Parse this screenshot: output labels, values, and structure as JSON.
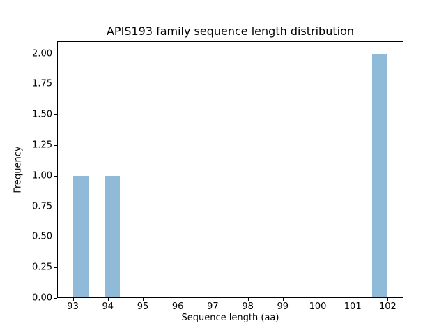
{
  "chart_data": {
    "type": "bar",
    "subtype": "histogram",
    "title": "APIS193 family sequence length distribution",
    "xlabel": "Sequence length (aa)",
    "ylabel": "Frequency",
    "xlim": [
      92.55,
      102.45
    ],
    "ylim": [
      0,
      2.1
    ],
    "grid": false,
    "legend": false,
    "background_color": "#ffffff",
    "axis_color": "#000000",
    "bar_color": "#8fbbd9",
    "xticks": [
      {
        "value": 93,
        "label": "93"
      },
      {
        "value": 94,
        "label": "94"
      },
      {
        "value": 95,
        "label": "95"
      },
      {
        "value": 96,
        "label": "96"
      },
      {
        "value": 97,
        "label": "97"
      },
      {
        "value": 98,
        "label": "98"
      },
      {
        "value": 99,
        "label": "99"
      },
      {
        "value": 100,
        "label": "100"
      },
      {
        "value": 101,
        "label": "101"
      },
      {
        "value": 102,
        "label": "102"
      }
    ],
    "yticks": [
      {
        "value": 0.0,
        "label": "0.00"
      },
      {
        "value": 0.25,
        "label": "0.25"
      },
      {
        "value": 0.5,
        "label": "0.50"
      },
      {
        "value": 0.75,
        "label": "0.75"
      },
      {
        "value": 1.0,
        "label": "1.00"
      },
      {
        "value": 1.25,
        "label": "1.25"
      },
      {
        "value": 1.5,
        "label": "1.50"
      },
      {
        "value": 1.75,
        "label": "1.75"
      },
      {
        "value": 2.0,
        "label": "2.00"
      }
    ],
    "bars": [
      {
        "bin_start": 93.0,
        "bin_end": 93.45,
        "frequency": 1
      },
      {
        "bin_start": 93.9,
        "bin_end": 94.35,
        "frequency": 1
      },
      {
        "bin_start": 101.55,
        "bin_end": 102.0,
        "frequency": 2
      }
    ]
  }
}
